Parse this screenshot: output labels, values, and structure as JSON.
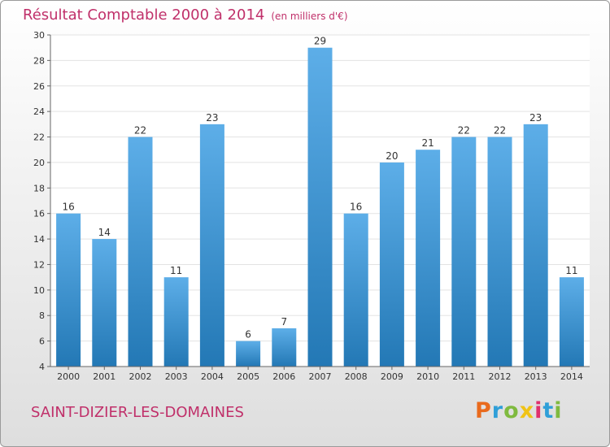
{
  "header": {
    "title": "Résultat Comptable 2000 à 2014",
    "subtitle": "(en milliers d'€)"
  },
  "commune": "SAINT-DIZIER-LES-DOMAINES",
  "logo": {
    "letters": [
      "P",
      "r",
      "o",
      "x",
      "i",
      "t",
      "i"
    ],
    "colors": [
      "#e96a1d",
      "#2f9fd8",
      "#7fba3f",
      "#f0c316",
      "#e0306e",
      "#2f9fd8",
      "#7fba3f"
    ]
  },
  "colors": {
    "bar_light": "#5daee8",
    "bar_dark": "#2378b5",
    "title": "#c0306a"
  },
  "chart_data": {
    "type": "bar",
    "title": "Résultat Comptable 2000 à 2014",
    "subtitle": "(en milliers d'€)",
    "xlabel": "",
    "ylabel": "",
    "categories": [
      "2000",
      "2001",
      "2002",
      "2003",
      "2004",
      "2005",
      "2006",
      "2007",
      "2008",
      "2009",
      "2010",
      "2011",
      "2012",
      "2013",
      "2014"
    ],
    "values": [
      16,
      14,
      22,
      11,
      23,
      6,
      7,
      29,
      16,
      20,
      21,
      22,
      22,
      23,
      11
    ],
    "ylim": [
      4,
      30
    ],
    "yticks": [
      4,
      6,
      8,
      10,
      12,
      14,
      16,
      18,
      20,
      22,
      24,
      26,
      28,
      30
    ],
    "grid": true,
    "data_labels": true
  }
}
